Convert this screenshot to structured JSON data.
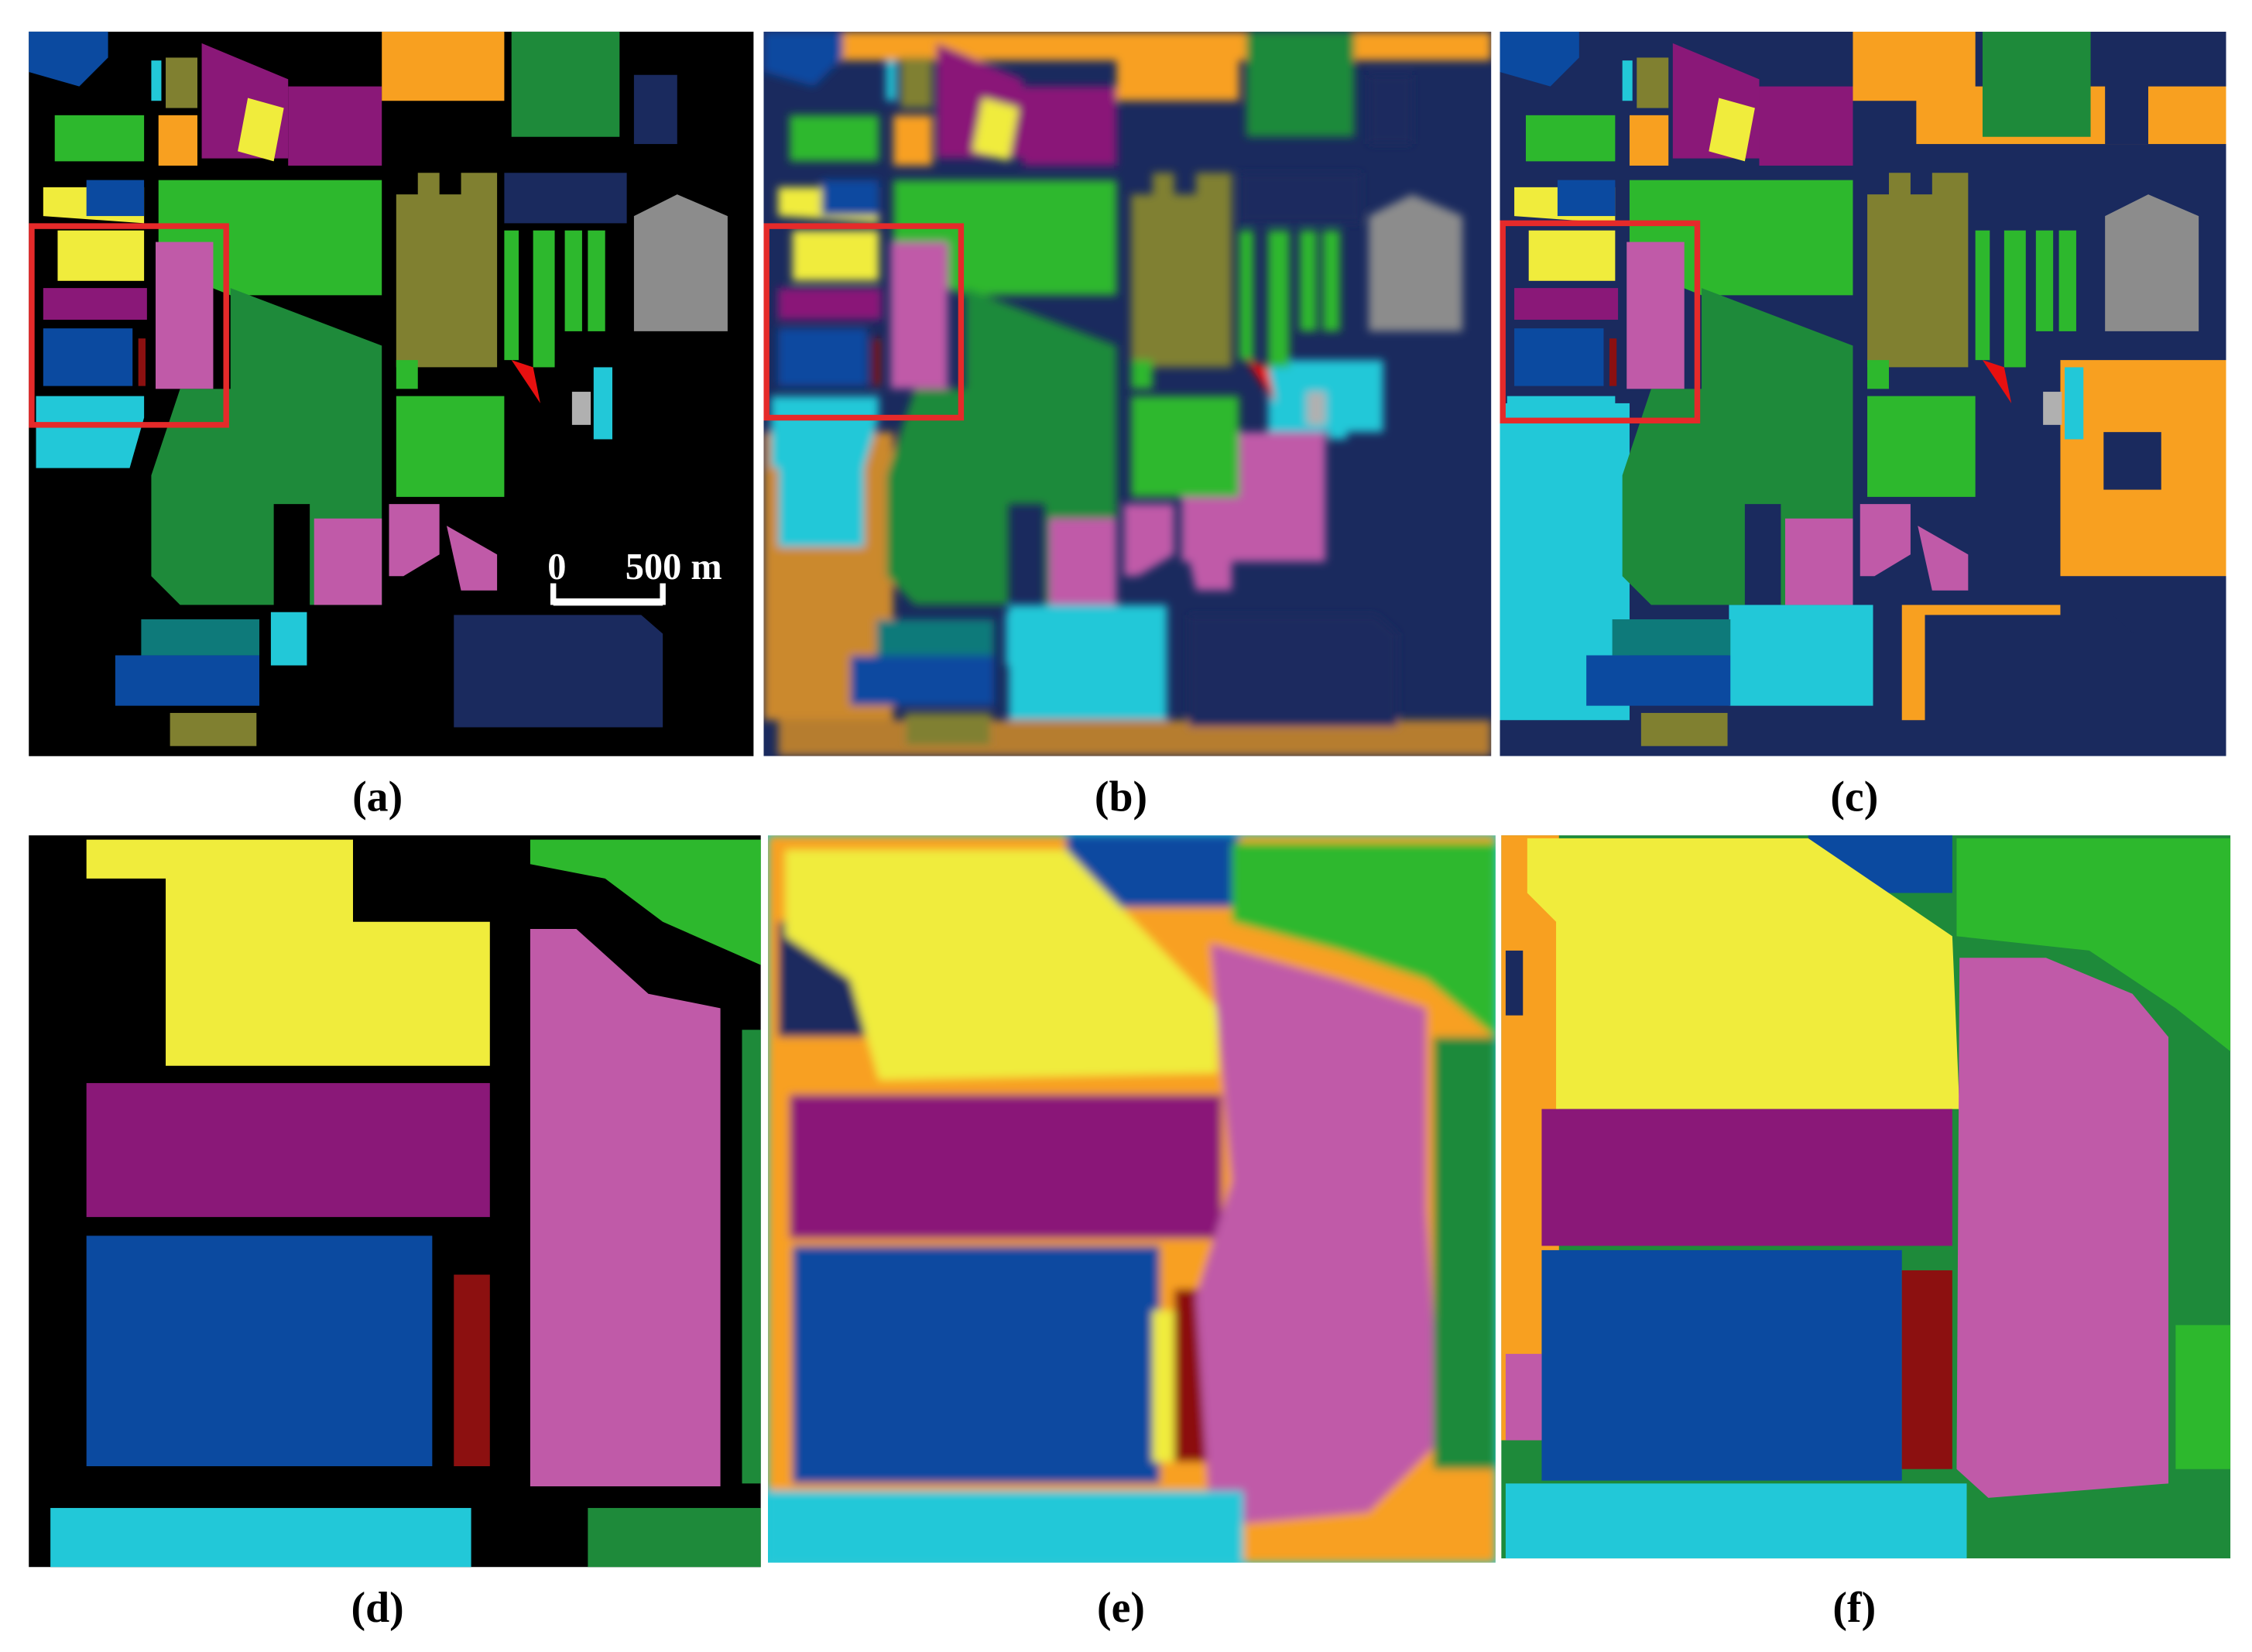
{
  "panels": [
    {
      "label": "(a)"
    },
    {
      "label": "(b)"
    },
    {
      "label": "(c)"
    },
    {
      "label": "(d)"
    },
    {
      "label": "(e)"
    },
    {
      "label": "(f)"
    }
  ],
  "scale_bar": {
    "start": "0",
    "end": "500 m"
  }
}
